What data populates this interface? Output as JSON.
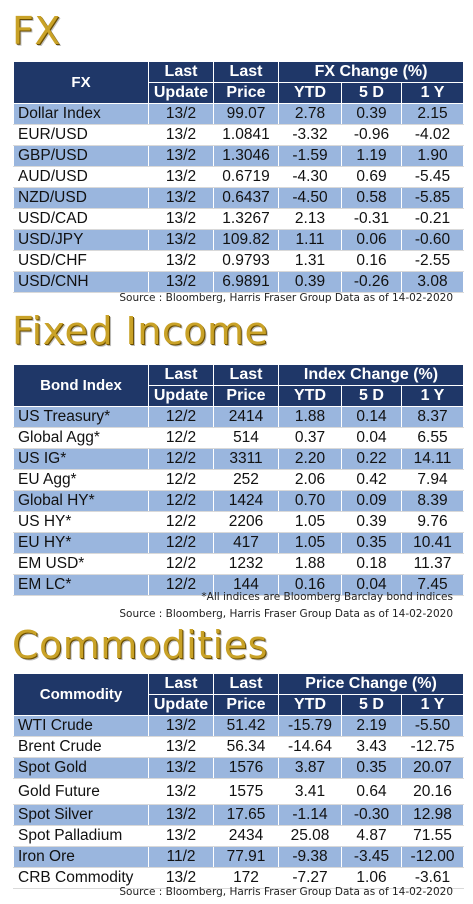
{
  "fx": {
    "title": "FX",
    "headers": {
      "name": "FX",
      "update_1": "Last",
      "update_2": "Update",
      "price_1": "Last",
      "price_2": "Price",
      "change": "FX Change (%)",
      "ytd": "YTD",
      "d5": "5 D",
      "y1": "1 Y"
    },
    "rows": [
      {
        "name": "Dollar Index",
        "update": "13/2",
        "price": "99.07",
        "ytd": "2.78",
        "d5": "0.39",
        "y1": "2.15"
      },
      {
        "name": "EUR/USD",
        "update": "13/2",
        "price": "1.0841",
        "ytd": "-3.32",
        "d5": "-0.96",
        "y1": "-4.02"
      },
      {
        "name": "GBP/USD",
        "update": "13/2",
        "price": "1.3046",
        "ytd": "-1.59",
        "d5": "1.19",
        "y1": "1.90"
      },
      {
        "name": "AUD/USD",
        "update": "13/2",
        "price": "0.6719",
        "ytd": "-4.30",
        "d5": "0.69",
        "y1": "-5.45"
      },
      {
        "name": "NZD/USD",
        "update": "13/2",
        "price": "0.6437",
        "ytd": "-4.50",
        "d5": "0.58",
        "y1": "-5.85"
      },
      {
        "name": "USD/CAD",
        "update": "13/2",
        "price": "1.3267",
        "ytd": "2.13",
        "d5": "-0.31",
        "y1": "-0.21"
      },
      {
        "name": "USD/JPY",
        "update": "13/2",
        "price": "109.82",
        "ytd": "1.11",
        "d5": "0.06",
        "y1": "-0.60"
      },
      {
        "name": "USD/CHF",
        "update": "13/2",
        "price": "0.9793",
        "ytd": "1.31",
        "d5": "0.16",
        "y1": "-2.55"
      },
      {
        "name": "USD/CNH",
        "update": "13/2",
        "price": "6.9891",
        "ytd": "0.39",
        "d5": "-0.26",
        "y1": "3.08"
      }
    ],
    "source": "Source : Bloomberg, Harris Fraser Group Data as of 14-02-2020"
  },
  "fixed_income": {
    "title": "Fixed Income",
    "headers": {
      "name": "Bond Index",
      "update_1": "Last",
      "update_2": "Update",
      "price_1": "Last",
      "price_2": "Price",
      "change": "Index Change (%)",
      "ytd": "YTD",
      "d5": "5 D",
      "y1": "1 Y"
    },
    "rows": [
      {
        "name": "US Treasury*",
        "update": "12/2",
        "price": "2414",
        "ytd": "1.88",
        "d5": "0.14",
        "y1": "8.37"
      },
      {
        "name": "Global Agg*",
        "update": "12/2",
        "price": "514",
        "ytd": "0.37",
        "d5": "0.04",
        "y1": "6.55"
      },
      {
        "name": "US IG*",
        "update": "12/2",
        "price": "3311",
        "ytd": "2.20",
        "d5": "0.22",
        "y1": "14.11"
      },
      {
        "name": "EU Agg*",
        "update": "12/2",
        "price": "252",
        "ytd": "2.06",
        "d5": "0.42",
        "y1": "7.94"
      },
      {
        "name": "Global HY*",
        "update": "12/2",
        "price": "1424",
        "ytd": "0.70",
        "d5": "0.09",
        "y1": "8.39"
      },
      {
        "name": "US HY*",
        "update": "12/2",
        "price": "2206",
        "ytd": "1.05",
        "d5": "0.39",
        "y1": "9.76"
      },
      {
        "name": "EU HY*",
        "update": "12/2",
        "price": "417",
        "ytd": "1.05",
        "d5": "0.35",
        "y1": "10.41"
      },
      {
        "name": "EM USD*",
        "update": "12/2",
        "price": "1232",
        "ytd": "1.88",
        "d5": "0.18",
        "y1": "11.37"
      },
      {
        "name": "EM LC*",
        "update": "12/2",
        "price": "144",
        "ytd": "0.16",
        "d5": "0.04",
        "y1": "7.45"
      }
    ],
    "footnote": "*All indices are Bloomberg Barclay bond indices",
    "source": "Source : Bloomberg, Harris Fraser Group Data as of 14-02-2020"
  },
  "commodities": {
    "title": "Commodities",
    "headers": {
      "name": "Commodity",
      "update_1": "Last",
      "update_2": "Update",
      "price_1": "Last",
      "price_2": "Price",
      "change": "Price Change (%)",
      "ytd": "YTD",
      "d5": "5 D",
      "y1": "1 Y"
    },
    "rows": [
      {
        "name": "WTI Crude",
        "update": "13/2",
        "price": "51.42",
        "ytd": "-15.79",
        "d5": "2.19",
        "y1": "-5.50"
      },
      {
        "name": "Brent Crude",
        "update": "13/2",
        "price": "56.34",
        "ytd": "-14.64",
        "d5": "3.43",
        "y1": "-12.75"
      },
      {
        "name": "Spot Gold",
        "update": "13/2",
        "price": "1576",
        "ytd": "3.87",
        "d5": "0.35",
        "y1": "20.07"
      },
      {
        "name": "Gold Future",
        "update": "13/2",
        "price": "1575",
        "ytd": "3.41",
        "d5": "0.64",
        "y1": "20.16"
      },
      {
        "name": "Spot Silver",
        "update": "13/2",
        "price": "17.65",
        "ytd": "-1.14",
        "d5": "-0.30",
        "y1": "12.98"
      },
      {
        "name": "Spot Palladium",
        "update": "13/2",
        "price": "2434",
        "ytd": "25.08",
        "d5": "4.87",
        "y1": "71.55"
      },
      {
        "name": "Iron Ore",
        "update": "11/2",
        "price": "77.91",
        "ytd": "-9.38",
        "d5": "-3.45",
        "y1": "-12.00"
      },
      {
        "name": "CRB Commodity",
        "update": "13/2",
        "price": "172",
        "ytd": "-7.27",
        "d5": "1.06",
        "y1": "-3.61"
      }
    ],
    "source": "Source : Bloomberg, Harris Fraser Group Data as of 14-02-2020"
  },
  "colors": {
    "title_gold": "#c9a227",
    "header_navy": "#1f3768",
    "row_blue": "#9ab6de"
  }
}
